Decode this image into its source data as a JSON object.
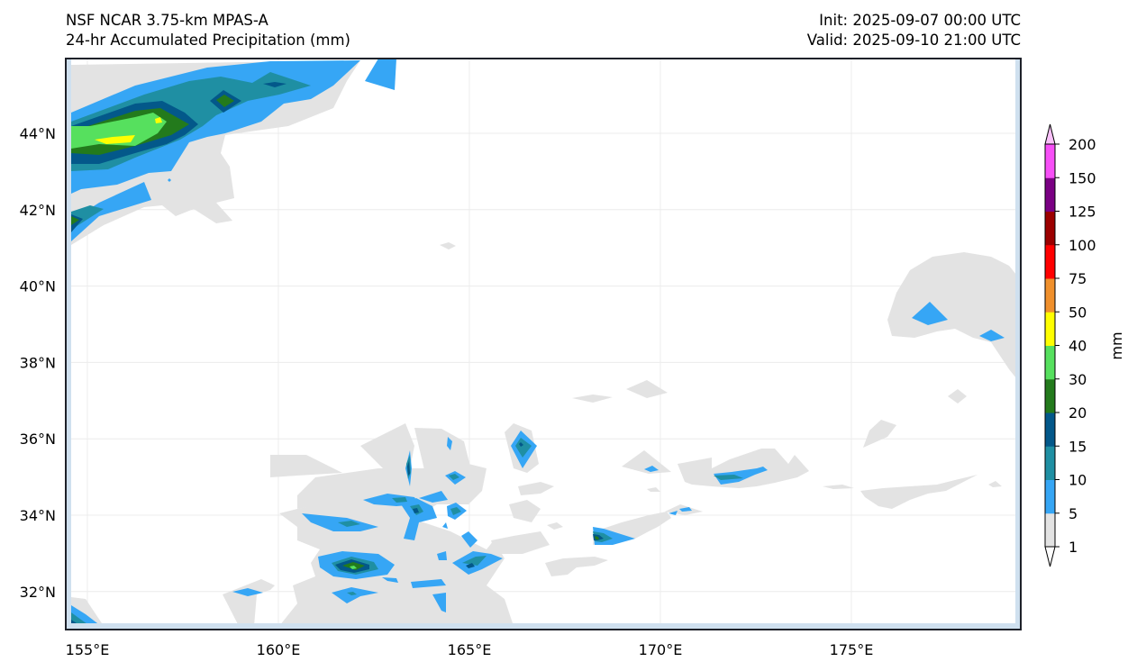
{
  "header": {
    "model_title": "NSF NCAR 3.75-km MPAS-A",
    "field_title": "24-hr Accumulated Precipitation (mm)",
    "init_label": "Init: 2025-09-07 00:00 UTC",
    "valid_label": "Valid: 2025-09-10 21:00 UTC"
  },
  "map": {
    "lon_ticks": [
      155,
      160,
      165,
      170,
      175
    ],
    "lon_tick_labels": [
      "155°E",
      "160°E",
      "165°E",
      "170°E",
      "175°E"
    ],
    "lat_ticks": [
      44,
      42,
      40,
      38,
      36,
      34,
      32
    ],
    "lat_tick_labels": [
      "44°N",
      "42°N",
      "40°N",
      "38°N",
      "36°N",
      "34°N",
      "32°N"
    ],
    "lon_range": [
      154.4,
      179.4
    ],
    "lat_range": [
      31.0,
      45.95
    ],
    "ocean_edge_color": "#cfe0ef",
    "gridlines": true
  },
  "colorbar": {
    "units_label": "mm",
    "levels": [
      1,
      5,
      10,
      15,
      20,
      30,
      40,
      50,
      75,
      100,
      125,
      150,
      200
    ],
    "level_labels": [
      "1",
      "5",
      "10",
      "15",
      "20",
      "30",
      "40",
      "50",
      "75",
      "100",
      "125",
      "150",
      "200"
    ],
    "colors": [
      "#e3e3e3",
      "#36a6f5",
      "#1f8fa3",
      "#03588a",
      "#237a1c",
      "#56e05e",
      "#ffff00",
      "#f0902c",
      "#ff0000",
      "#9c0000",
      "#7a0083",
      "#f74ff7"
    ],
    "extend_max_color": "#f9c1f9",
    "extend_min_color": "#ffffff"
  }
}
